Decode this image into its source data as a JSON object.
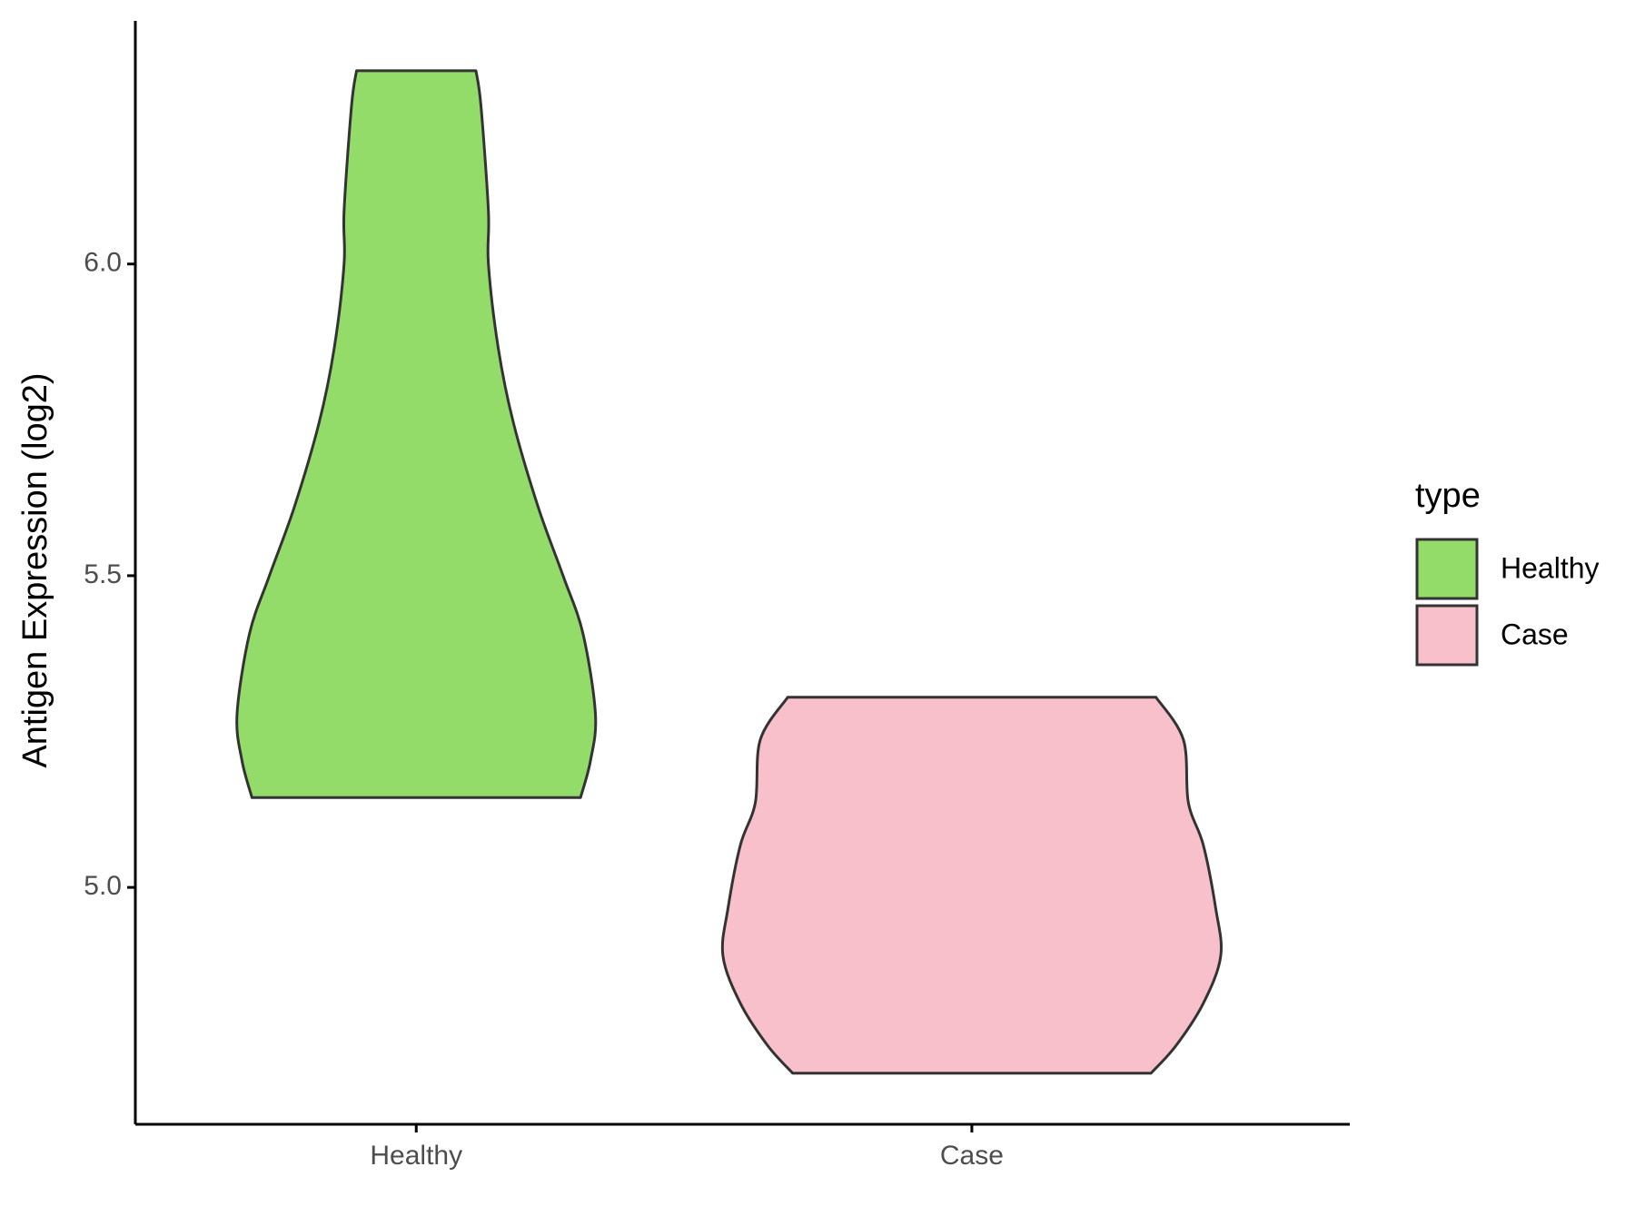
{
  "chart_data": {
    "type": "violin",
    "y_label": "Antigen Expression (log2)",
    "categories": [
      "Healthy",
      "Case"
    ],
    "legend_title": "type",
    "legend_position": "right",
    "series": [
      {
        "name": "Healthy",
        "color": "#93dc6a",
        "y": [
          6.31,
          6.254,
          6.085,
          6.0,
          5.864,
          5.746,
          5.61,
          5.5,
          5.407,
          5.278,
          5.203,
          5.144
        ],
        "width": [
          0.24,
          0.26,
          0.29,
          0.29,
          0.33,
          0.39,
          0.49,
          0.59,
          0.67,
          0.72,
          0.7,
          0.66
        ]
      },
      {
        "name": "Case",
        "color": "#f7c0cb",
        "y": [
          5.305,
          5.237,
          5.136,
          5.068,
          4.966,
          4.89,
          4.814,
          4.746,
          4.702
        ],
        "width": [
          0.74,
          0.85,
          0.87,
          0.93,
          0.98,
          1.0,
          0.93,
          0.82,
          0.72
        ]
      }
    ],
    "ylim": [
      4.62,
      6.39
    ],
    "yticks": [
      {
        "value": 5,
        "label": "5.0"
      },
      5.5,
      {
        "value": 6,
        "label": "6.0"
      }
    ],
    "grid": false
  }
}
